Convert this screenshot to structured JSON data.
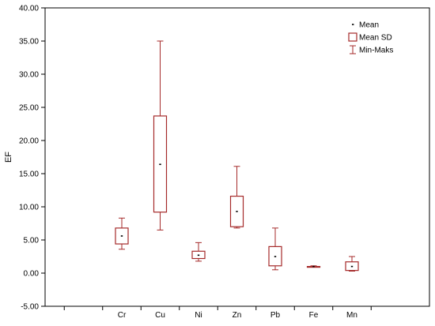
{
  "chart_data": {
    "type": "box",
    "ylabel": "EF",
    "categories": [
      "Cr",
      "Cu",
      "Ni",
      "Zn",
      "Pb",
      "Fe",
      "Mn"
    ],
    "series": [
      {
        "name": "Mean",
        "values": [
          5.6,
          16.4,
          2.7,
          9.3,
          2.5,
          1.0,
          1.0
        ]
      },
      {
        "name": "Mean SD",
        "low": [
          4.4,
          9.2,
          2.2,
          7.0,
          1.1,
          0.9,
          0.4
        ],
        "high": [
          6.8,
          23.7,
          3.3,
          11.6,
          4.0,
          1.0,
          1.7
        ]
      },
      {
        "name": "Min-Maks",
        "min": [
          3.6,
          6.5,
          1.8,
          6.8,
          0.5,
          0.9,
          0.3
        ],
        "max": [
          8.3,
          35.0,
          4.6,
          16.1,
          6.8,
          1.1,
          2.5
        ]
      }
    ],
    "ylim": [
      -5,
      40
    ],
    "yticks": [
      "-5.00",
      "0.00",
      "5.00",
      "10.00",
      "15.00",
      "20.00",
      "25.00",
      "30.00",
      "35.00",
      "40.00"
    ],
    "legend": {
      "position": "top-right",
      "entries": [
        "Mean",
        "Mean SD",
        "Min-Maks"
      ]
    },
    "colors": {
      "box": "#a52a2a",
      "axis": "#000000"
    }
  }
}
